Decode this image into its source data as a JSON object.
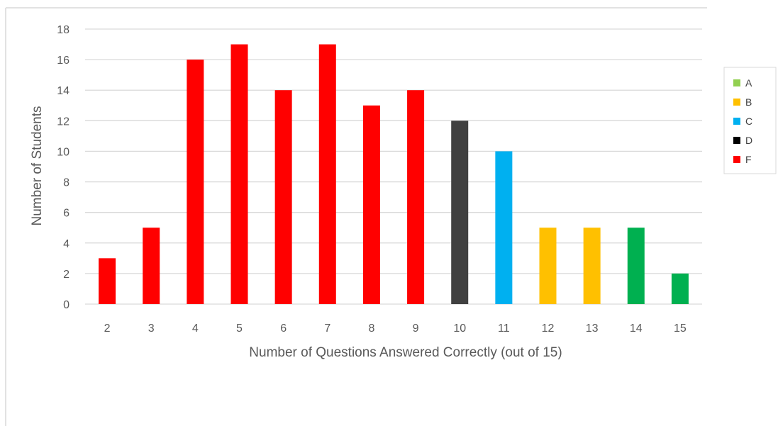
{
  "chart_data": {
    "type": "bar",
    "categories": [
      "2",
      "3",
      "4",
      "5",
      "6",
      "7",
      "8",
      "9",
      "10",
      "11",
      "12",
      "13",
      "14",
      "15"
    ],
    "values": [
      3,
      5,
      16,
      17,
      14,
      17,
      13,
      14,
      12,
      10,
      5,
      5,
      5,
      2
    ],
    "bar_grades": [
      "F",
      "F",
      "F",
      "F",
      "F",
      "F",
      "F",
      "F",
      "D",
      "C",
      "B",
      "B",
      "A",
      "A"
    ],
    "title": "",
    "xlabel": "Number of Questions Answered Correctly (out of 15)",
    "ylabel": "Number of Students",
    "ylim": [
      0,
      18
    ],
    "yticks": [
      "0",
      "2",
      "4",
      "6",
      "8",
      "10",
      "12",
      "14",
      "16",
      "18"
    ],
    "grid": true,
    "legend_position": "right",
    "legend": [
      {
        "name": "A",
        "color": "#92D050"
      },
      {
        "name": "B",
        "color": "#FFC000"
      },
      {
        "name": "C",
        "color": "#00B0F0"
      },
      {
        "name": "D",
        "color": "#000000"
      },
      {
        "name": "F",
        "color": "#FF0000"
      }
    ],
    "bar_colors": {
      "A": "#00B050",
      "B": "#FFC000",
      "C": "#00B0F0",
      "D": "#404040",
      "F": "#FF0000"
    },
    "colors": {
      "gridline": "#D9D9D9",
      "axis_text": "#595959",
      "frame": "#D9D9D9"
    }
  }
}
